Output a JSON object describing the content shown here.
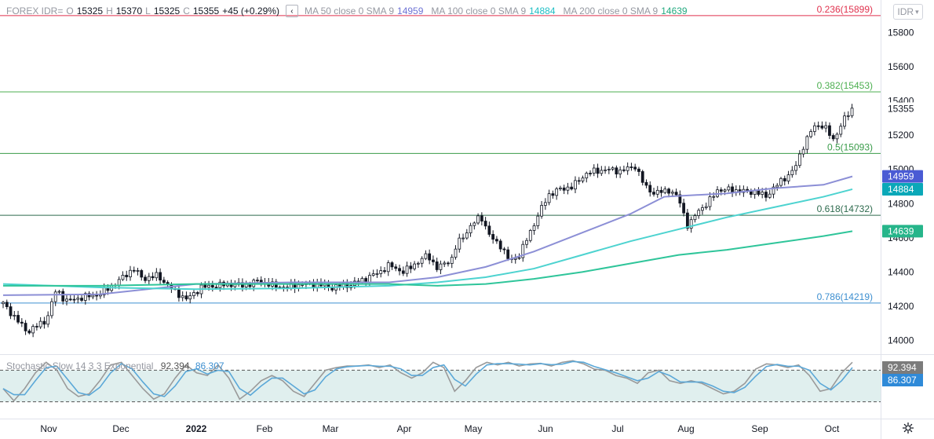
{
  "header": {
    "symbol": "FOREX IDR=",
    "o_label": "O",
    "o_value": "15325",
    "h_label": "H",
    "h_value": "15370",
    "l_label": "L",
    "l_value": "15325",
    "c_label": "C",
    "c_value": "15355",
    "change": "+45 (+0.29%)",
    "collapse_icon": "chevron-left-icon",
    "ma50_label": "MA 50 close 0 SMA 9",
    "ma50_value": "14959",
    "ma100_label": "MA 100 close 0 SMA 9",
    "ma100_value": "14884",
    "ma200_label": "MA 200 close 0 SMA 9",
    "ma200_value": "14639"
  },
  "currency_selector": "IDR",
  "stochastic": {
    "label": "Stochastic Slow 14 3 3 Exponential",
    "k_value": "92.394",
    "d_value": "86.307"
  },
  "settings_icon": "gear-icon",
  "colors": {
    "up_candle": "#ffffff",
    "candle_outline": "#131722",
    "ma50": "#8c8fd6",
    "ma100": "#4dd3d0",
    "ma200": "#2fc59a",
    "fib_0236": "#e0324e",
    "fib_0382": "#4caf50",
    "fib_05": "#3a9c4a",
    "fib_0618": "#2e6b4e",
    "fib_0786": "#3d8fd0",
    "stoch_k": "#9a9a9a",
    "stoch_d": "#5ba8d8",
    "stoch_band": "#e0efee"
  },
  "chart_data": {
    "type": "candlestick",
    "x_axis": {
      "tick_labels": [
        "Nov",
        "Dec",
        "2022",
        "Feb",
        "Mar",
        "Apr",
        "May",
        "Jun",
        "Jul",
        "Aug",
        "Sep",
        "Oct"
      ]
    },
    "y_axis": {
      "ticks": [
        14000,
        14200,
        14400,
        14600,
        14800,
        15000,
        15200,
        15400,
        15600,
        15800
      ],
      "range": [
        13920,
        15990
      ]
    },
    "price_labels": [
      {
        "label": "15355",
        "value": 15355,
        "color": "#ffffff",
        "text_color": "#131722"
      },
      {
        "label": "14959",
        "value": 14959,
        "color": "#4a5bd4",
        "text_color": "#ffffff"
      },
      {
        "label": "14884",
        "value": 14884,
        "color": "#0aa8b8",
        "text_color": "#ffffff"
      },
      {
        "label": "14639",
        "value": 14639,
        "color": "#26b58a",
        "text_color": "#ffffff"
      }
    ],
    "fib_levels": [
      {
        "ratio": "0.236",
        "label": "0.236(15899)",
        "value": 15899,
        "color": "#e0324e"
      },
      {
        "ratio": "0.382",
        "label": "0.382(15453)",
        "value": 15453,
        "color": "#4caf50"
      },
      {
        "ratio": "0.5",
        "label": "0.5(15093)",
        "value": 15093,
        "color": "#3a9c4a"
      },
      {
        "ratio": "0.618",
        "label": "0.618(14732)",
        "value": 14732,
        "color": "#2e6b4e"
      },
      {
        "ratio": "0.786",
        "label": "0.786(14219)",
        "value": 14219,
        "color": "#3d8fd0"
      }
    ],
    "price_path": [
      [
        0,
        14215
      ],
      [
        10,
        14050
      ],
      [
        18,
        14120
      ],
      [
        22,
        14300
      ],
      [
        26,
        14230
      ],
      [
        32,
        14250
      ],
      [
        40,
        14270
      ],
      [
        48,
        14350
      ],
      [
        54,
        14420
      ],
      [
        58,
        14360
      ],
      [
        64,
        14380
      ],
      [
        70,
        14300
      ],
      [
        76,
        14240
      ],
      [
        82,
        14310
      ],
      [
        88,
        14320
      ],
      [
        94,
        14330
      ],
      [
        100,
        14320
      ],
      [
        106,
        14350
      ],
      [
        112,
        14320
      ],
      [
        118,
        14310
      ],
      [
        124,
        14330
      ],
      [
        130,
        14330
      ],
      [
        136,
        14310
      ],
      [
        144,
        14325
      ],
      [
        150,
        14360
      ],
      [
        156,
        14400
      ],
      [
        160,
        14440
      ],
      [
        166,
        14400
      ],
      [
        172,
        14460
      ],
      [
        176,
        14500
      ],
      [
        180,
        14420
      ],
      [
        186,
        14480
      ],
      [
        188,
        14560
      ],
      [
        194,
        14670
      ],
      [
        198,
        14730
      ],
      [
        202,
        14600
      ],
      [
        206,
        14560
      ],
      [
        210,
        14460
      ],
      [
        214,
        14500
      ],
      [
        218,
        14620
      ],
      [
        222,
        14740
      ],
      [
        226,
        14850
      ],
      [
        230,
        14880
      ],
      [
        236,
        14900
      ],
      [
        242,
        14980
      ],
      [
        250,
        15000
      ],
      [
        256,
        14990
      ],
      [
        262,
        15020
      ],
      [
        266,
        14900
      ],
      [
        270,
        14860
      ],
      [
        276,
        14880
      ],
      [
        280,
        14830
      ],
      [
        284,
        14660
      ],
      [
        288,
        14760
      ],
      [
        292,
        14800
      ],
      [
        296,
        14880
      ],
      [
        302,
        14880
      ],
      [
        308,
        14870
      ],
      [
        312,
        14870
      ],
      [
        316,
        14840
      ],
      [
        320,
        14900
      ],
      [
        324,
        14950
      ],
      [
        328,
        15000
      ],
      [
        332,
        15150
      ],
      [
        336,
        15250
      ],
      [
        340,
        15260
      ],
      [
        344,
        15170
      ],
      [
        348,
        15280
      ],
      [
        352,
        15355
      ]
    ],
    "series": [
      {
        "name": "MA 50 close 0 SMA 9",
        "color": "#8c8fd6",
        "points": [
          [
            0,
            14265
          ],
          [
            40,
            14270
          ],
          [
            80,
            14330
          ],
          [
            120,
            14340
          ],
          [
            160,
            14340
          ],
          [
            180,
            14370
          ],
          [
            200,
            14430
          ],
          [
            220,
            14520
          ],
          [
            240,
            14630
          ],
          [
            260,
            14740
          ],
          [
            274,
            14840
          ],
          [
            300,
            14860
          ],
          [
            320,
            14890
          ],
          [
            340,
            14910
          ],
          [
            352,
            14959
          ]
        ]
      },
      {
        "name": "MA 100 close 0 SMA 9",
        "color": "#4dd3d0",
        "points": [
          [
            0,
            14330
          ],
          [
            40,
            14310
          ],
          [
            80,
            14300
          ],
          [
            120,
            14305
          ],
          [
            160,
            14320
          ],
          [
            180,
            14340
          ],
          [
            200,
            14370
          ],
          [
            220,
            14420
          ],
          [
            240,
            14500
          ],
          [
            260,
            14580
          ],
          [
            280,
            14650
          ],
          [
            300,
            14720
          ],
          [
            320,
            14780
          ],
          [
            340,
            14840
          ],
          [
            352,
            14884
          ]
        ]
      },
      {
        "name": "MA 200 close 0 SMA 9",
        "color": "#2fc59a",
        "points": [
          [
            0,
            14320
          ],
          [
            40,
            14320
          ],
          [
            80,
            14330
          ],
          [
            120,
            14330
          ],
          [
            160,
            14330
          ],
          [
            180,
            14320
          ],
          [
            200,
            14330
          ],
          [
            220,
            14360
          ],
          [
            240,
            14400
          ],
          [
            260,
            14450
          ],
          [
            280,
            14500
          ],
          [
            300,
            14530
          ],
          [
            320,
            14570
          ],
          [
            340,
            14610
          ],
          [
            352,
            14639
          ]
        ]
      }
    ],
    "stochastic": {
      "upper_band": 80,
      "lower_band": 20,
      "k_points": [
        [
          0,
          45
        ],
        [
          10,
          22
        ],
        [
          20,
          45
        ],
        [
          30,
          75
        ],
        [
          40,
          95
        ],
        [
          50,
          80
        ],
        [
          60,
          45
        ],
        [
          70,
          30
        ],
        [
          80,
          35
        ],
        [
          90,
          60
        ],
        [
          100,
          90
        ],
        [
          110,
          95
        ],
        [
          120,
          70
        ],
        [
          130,
          45
        ],
        [
          140,
          25
        ],
        [
          150,
          35
        ],
        [
          160,
          65
        ],
        [
          170,
          90
        ],
        [
          180,
          75
        ],
        [
          190,
          70
        ],
        [
          200,
          90
        ],
        [
          210,
          65
        ],
        [
          220,
          25
        ],
        [
          230,
          40
        ],
        [
          240,
          60
        ],
        [
          250,
          70
        ],
        [
          260,
          60
        ],
        [
          270,
          40
        ],
        [
          280,
          30
        ],
        [
          290,
          55
        ],
        [
          300,
          80
        ],
        [
          310,
          85
        ],
        [
          320,
          88
        ],
        [
          330,
          88
        ],
        [
          340,
          90
        ],
        [
          350,
          85
        ],
        [
          360,
          90
        ],
        [
          370,
          75
        ],
        [
          380,
          65
        ],
        [
          390,
          75
        ],
        [
          400,
          95
        ],
        [
          410,
          85
        ],
        [
          420,
          40
        ],
        [
          430,
          60
        ],
        [
          440,
          85
        ],
        [
          450,
          95
        ],
        [
          460,
          90
        ],
        [
          470,
          95
        ],
        [
          480,
          88
        ],
        [
          490,
          92
        ],
        [
          500,
          93
        ],
        [
          510,
          88
        ],
        [
          520,
          95
        ],
        [
          530,
          98
        ],
        [
          540,
          92
        ],
        [
          550,
          82
        ],
        [
          560,
          80
        ],
        [
          570,
          70
        ],
        [
          580,
          65
        ],
        [
          590,
          55
        ],
        [
          600,
          75
        ],
        [
          610,
          80
        ],
        [
          620,
          60
        ],
        [
          630,
          55
        ],
        [
          640,
          60
        ],
        [
          650,
          55
        ],
        [
          660,
          45
        ],
        [
          670,
          35
        ],
        [
          680,
          40
        ],
        [
          690,
          55
        ],
        [
          700,
          82
        ],
        [
          710,
          92
        ],
        [
          720,
          90
        ],
        [
          730,
          85
        ],
        [
          740,
          90
        ],
        [
          750,
          70
        ],
        [
          760,
          40
        ],
        [
          770,
          45
        ],
        [
          780,
          75
        ],
        [
          790,
          95
        ]
      ]
    }
  }
}
